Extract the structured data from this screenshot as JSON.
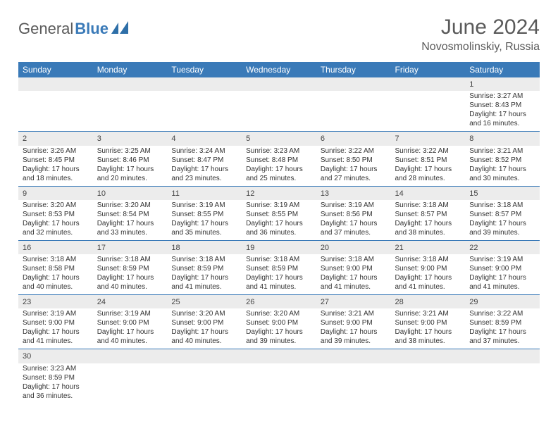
{
  "logo": {
    "text1": "General",
    "text2": "Blue",
    "icon_color": "#2e6fa8"
  },
  "header": {
    "title": "June 2024",
    "location": "Novosmolinskiy, Russia"
  },
  "colors": {
    "header_bg": "#3a7ab8",
    "header_fg": "#ffffff",
    "daynum_bg": "#ececec",
    "cell_border": "#3a7ab8",
    "text": "#333333",
    "title_color": "#5a5a5a"
  },
  "weekdays": [
    "Sunday",
    "Monday",
    "Tuesday",
    "Wednesday",
    "Thursday",
    "Friday",
    "Saturday"
  ],
  "first_weekday_index": 6,
  "days": [
    {
      "n": 1,
      "sunrise": "3:27 AM",
      "sunset": "8:43 PM",
      "daylight": "17 hours and 16 minutes."
    },
    {
      "n": 2,
      "sunrise": "3:26 AM",
      "sunset": "8:45 PM",
      "daylight": "17 hours and 18 minutes."
    },
    {
      "n": 3,
      "sunrise": "3:25 AM",
      "sunset": "8:46 PM",
      "daylight": "17 hours and 20 minutes."
    },
    {
      "n": 4,
      "sunrise": "3:24 AM",
      "sunset": "8:47 PM",
      "daylight": "17 hours and 23 minutes."
    },
    {
      "n": 5,
      "sunrise": "3:23 AM",
      "sunset": "8:48 PM",
      "daylight": "17 hours and 25 minutes."
    },
    {
      "n": 6,
      "sunrise": "3:22 AM",
      "sunset": "8:50 PM",
      "daylight": "17 hours and 27 minutes."
    },
    {
      "n": 7,
      "sunrise": "3:22 AM",
      "sunset": "8:51 PM",
      "daylight": "17 hours and 28 minutes."
    },
    {
      "n": 8,
      "sunrise": "3:21 AM",
      "sunset": "8:52 PM",
      "daylight": "17 hours and 30 minutes."
    },
    {
      "n": 9,
      "sunrise": "3:20 AM",
      "sunset": "8:53 PM",
      "daylight": "17 hours and 32 minutes."
    },
    {
      "n": 10,
      "sunrise": "3:20 AM",
      "sunset": "8:54 PM",
      "daylight": "17 hours and 33 minutes."
    },
    {
      "n": 11,
      "sunrise": "3:19 AM",
      "sunset": "8:55 PM",
      "daylight": "17 hours and 35 minutes."
    },
    {
      "n": 12,
      "sunrise": "3:19 AM",
      "sunset": "8:55 PM",
      "daylight": "17 hours and 36 minutes."
    },
    {
      "n": 13,
      "sunrise": "3:19 AM",
      "sunset": "8:56 PM",
      "daylight": "17 hours and 37 minutes."
    },
    {
      "n": 14,
      "sunrise": "3:18 AM",
      "sunset": "8:57 PM",
      "daylight": "17 hours and 38 minutes."
    },
    {
      "n": 15,
      "sunrise": "3:18 AM",
      "sunset": "8:57 PM",
      "daylight": "17 hours and 39 minutes."
    },
    {
      "n": 16,
      "sunrise": "3:18 AM",
      "sunset": "8:58 PM",
      "daylight": "17 hours and 40 minutes."
    },
    {
      "n": 17,
      "sunrise": "3:18 AM",
      "sunset": "8:59 PM",
      "daylight": "17 hours and 40 minutes."
    },
    {
      "n": 18,
      "sunrise": "3:18 AM",
      "sunset": "8:59 PM",
      "daylight": "17 hours and 41 minutes."
    },
    {
      "n": 19,
      "sunrise": "3:18 AM",
      "sunset": "8:59 PM",
      "daylight": "17 hours and 41 minutes."
    },
    {
      "n": 20,
      "sunrise": "3:18 AM",
      "sunset": "9:00 PM",
      "daylight": "17 hours and 41 minutes."
    },
    {
      "n": 21,
      "sunrise": "3:18 AM",
      "sunset": "9:00 PM",
      "daylight": "17 hours and 41 minutes."
    },
    {
      "n": 22,
      "sunrise": "3:19 AM",
      "sunset": "9:00 PM",
      "daylight": "17 hours and 41 minutes."
    },
    {
      "n": 23,
      "sunrise": "3:19 AM",
      "sunset": "9:00 PM",
      "daylight": "17 hours and 41 minutes."
    },
    {
      "n": 24,
      "sunrise": "3:19 AM",
      "sunset": "9:00 PM",
      "daylight": "17 hours and 40 minutes."
    },
    {
      "n": 25,
      "sunrise": "3:20 AM",
      "sunset": "9:00 PM",
      "daylight": "17 hours and 40 minutes."
    },
    {
      "n": 26,
      "sunrise": "3:20 AM",
      "sunset": "9:00 PM",
      "daylight": "17 hours and 39 minutes."
    },
    {
      "n": 27,
      "sunrise": "3:21 AM",
      "sunset": "9:00 PM",
      "daylight": "17 hours and 39 minutes."
    },
    {
      "n": 28,
      "sunrise": "3:21 AM",
      "sunset": "9:00 PM",
      "daylight": "17 hours and 38 minutes."
    },
    {
      "n": 29,
      "sunrise": "3:22 AM",
      "sunset": "8:59 PM",
      "daylight": "17 hours and 37 minutes."
    },
    {
      "n": 30,
      "sunrise": "3:23 AM",
      "sunset": "8:59 PM",
      "daylight": "17 hours and 36 minutes."
    }
  ],
  "labels": {
    "sunrise": "Sunrise:",
    "sunset": "Sunset:",
    "daylight": "Daylight:"
  },
  "typography": {
    "title_fontsize": 30,
    "location_fontsize": 16,
    "weekday_fontsize": 12,
    "cell_fontsize": 10,
    "daynum_fontsize": 11
  }
}
